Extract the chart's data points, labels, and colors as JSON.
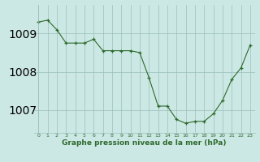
{
  "x": [
    0,
    1,
    2,
    3,
    4,
    5,
    6,
    7,
    8,
    9,
    10,
    11,
    12,
    13,
    14,
    15,
    16,
    17,
    18,
    19,
    20,
    21,
    22,
    23
  ],
  "y": [
    1009.3,
    1009.35,
    1009.1,
    1008.75,
    1008.75,
    1008.75,
    1008.85,
    1008.55,
    1008.55,
    1008.55,
    1008.55,
    1008.5,
    1007.85,
    1007.1,
    1007.1,
    1006.75,
    1006.65,
    1006.7,
    1006.7,
    1006.9,
    1007.25,
    1007.8,
    1008.1,
    1008.7
  ],
  "line_color": "#2d6a2d",
  "marker_color": "#2d6a2d",
  "bg_color": "#cce8e4",
  "grid_color": "#9bbfbb",
  "xlabel": "Graphe pression niveau de la mer (hPa)",
  "xlabel_fontsize": 6.5,
  "xlabel_color": "#2d6a2d",
  "tick_color": "#2d6a2d",
  "ylim_min": 1006.4,
  "ylim_max": 1009.75,
  "yticks": [
    1007,
    1008,
    1009
  ],
  "xticks": [
    0,
    1,
    2,
    3,
    4,
    5,
    6,
    7,
    8,
    9,
    10,
    11,
    12,
    13,
    14,
    15,
    16,
    17,
    18,
    19,
    20,
    21,
    22,
    23
  ]
}
